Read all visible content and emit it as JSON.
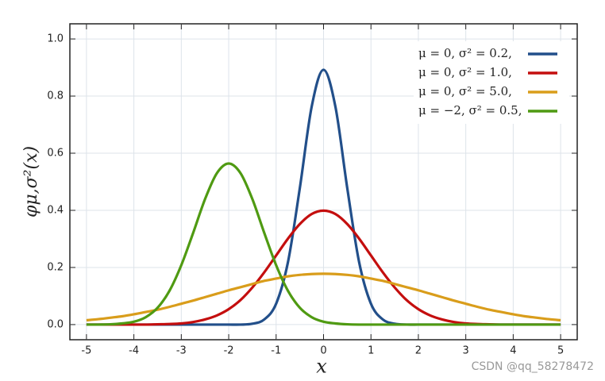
{
  "chart_data": {
    "type": "line",
    "xlabel": "x",
    "ylabel": "φμ,σ²(x)",
    "watermark": "CSDN @qq_58278472",
    "x": [
      -5,
      -4.75,
      -4.5,
      -4.25,
      -4,
      -3.75,
      -3.5,
      -3.25,
      -3,
      -2.75,
      -2.5,
      -2.25,
      -2,
      -1.75,
      -1.5,
      -1.25,
      -1,
      -0.75,
      -0.5,
      -0.25,
      0,
      0.25,
      0.5,
      0.75,
      1,
      1.25,
      1.5,
      1.75,
      2,
      2.25,
      2.5,
      2.75,
      3,
      3.25,
      3.5,
      3.75,
      4,
      4.25,
      4.5,
      4.75,
      5
    ],
    "series": [
      {
        "name": "μ = 0,   σ² = 0.2,",
        "color": "#224f8a",
        "values": [
          0,
          0,
          0,
          0,
          0,
          0,
          0,
          0,
          0,
          0,
          0,
          0,
          0,
          0,
          0.003,
          0.018,
          0.073,
          0.219,
          0.478,
          0.763,
          0.892,
          0.763,
          0.478,
          0.219,
          0.073,
          0.018,
          0.003,
          0,
          0,
          0,
          0,
          0,
          0,
          0,
          0,
          0,
          0,
          0,
          0,
          0,
          0
        ]
      },
      {
        "name": "μ = 0,   σ² = 1.0,",
        "color": "#c40e0e",
        "values": [
          0,
          0,
          0,
          0,
          0,
          0,
          0.001,
          0.002,
          0.004,
          0.009,
          0.018,
          0.032,
          0.054,
          0.086,
          0.13,
          0.183,
          0.242,
          0.301,
          0.352,
          0.387,
          0.399,
          0.387,
          0.352,
          0.301,
          0.242,
          0.183,
          0.13,
          0.086,
          0.054,
          0.032,
          0.018,
          0.009,
          0.004,
          0.002,
          0.001,
          0,
          0,
          0,
          0,
          0,
          0
        ]
      },
      {
        "name": "μ = 0,   σ² = 5.0,",
        "color": "#d99d1b",
        "values": [
          0.015,
          0.019,
          0.024,
          0.029,
          0.036,
          0.044,
          0.052,
          0.062,
          0.073,
          0.084,
          0.096,
          0.108,
          0.12,
          0.131,
          0.142,
          0.153,
          0.161,
          0.169,
          0.174,
          0.177,
          0.178,
          0.177,
          0.174,
          0.169,
          0.161,
          0.153,
          0.142,
          0.131,
          0.12,
          0.108,
          0.096,
          0.084,
          0.073,
          0.062,
          0.052,
          0.044,
          0.036,
          0.029,
          0.024,
          0.019,
          0.015
        ]
      },
      {
        "name": "μ = −2, σ² = 0.5,",
        "color": "#4f9a12",
        "values": [
          0,
          0,
          0.001,
          0.004,
          0.01,
          0.026,
          0.059,
          0.118,
          0.208,
          0.321,
          0.439,
          0.53,
          0.564,
          0.53,
          0.439,
          0.321,
          0.208,
          0.118,
          0.059,
          0.026,
          0.01,
          0.004,
          0.001,
          0,
          0,
          0,
          0,
          0,
          0,
          0,
          0,
          0,
          0,
          0,
          0,
          0,
          0,
          0,
          0,
          0,
          0
        ]
      }
    ],
    "xlim": [
      -5.35,
      5.35
    ],
    "ylim": [
      -0.053,
      1.053
    ],
    "xticks": [
      -5,
      -4,
      -3,
      -2,
      -1,
      0,
      1,
      2,
      3,
      4,
      5
    ],
    "yticks": [
      {
        "value": 0,
        "label": "0.0"
      },
      0.2,
      0.4,
      0.6,
      0.8,
      {
        "value": 1,
        "label": "1.0"
      }
    ],
    "grid": true,
    "legend": "upper-right"
  }
}
